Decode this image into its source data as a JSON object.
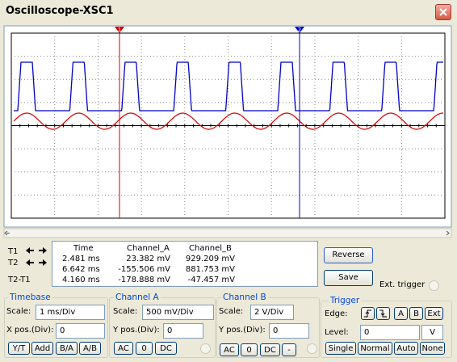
{
  "window": {
    "title": "Oscilloscope-XSC1"
  },
  "cursors": {
    "t1_marker": "1",
    "t2_marker": "2"
  },
  "readout": {
    "headers": [
      "Time",
      "Channel_A",
      "Channel_B"
    ],
    "rows": [
      [
        "T1",
        "2.481 ms",
        "23.382 mV",
        "929.209 mV"
      ],
      [
        "T2",
        "6.642 ms",
        "-155.506 mV",
        "881.753 mV"
      ],
      [
        "T2-T1",
        "4.160 ms",
        "-178.888 mV",
        "-47.457 mV"
      ]
    ]
  },
  "actions": {
    "reverse": "Reverse",
    "save": "Save",
    "ext_trigger": "Ext. trigger"
  },
  "timebase": {
    "title": "Timebase",
    "scale_label": "Scale:",
    "scale": "1 ms/Div",
    "xpos_label": "X pos.(Div):",
    "xpos": "0",
    "buttons": [
      "Y/T",
      "Add",
      "B/A",
      "A/B"
    ]
  },
  "channel_a": {
    "title": "Channel A",
    "scale_label": "Scale:",
    "scale": "500 mV/Div",
    "ypos_label": "Y pos.(Div):",
    "ypos": "0",
    "buttons": [
      "AC",
      "0",
      "DC"
    ]
  },
  "channel_b": {
    "title": "Channel B",
    "scale_label": "Scale:",
    "scale": "2 V/Div",
    "ypos_label": "Y pos.(Div):",
    "ypos": "0",
    "buttons": [
      "AC",
      "0",
      "DC",
      "-"
    ]
  },
  "trigger": {
    "title": "Trigger",
    "edge_label": "Edge:",
    "edge_buttons": [
      "A",
      "B",
      "Ext"
    ],
    "level_label": "Level:",
    "level": "0",
    "level_unit": "V",
    "mode_buttons": [
      "Single",
      "Normal",
      "Auto",
      "None"
    ]
  }
}
